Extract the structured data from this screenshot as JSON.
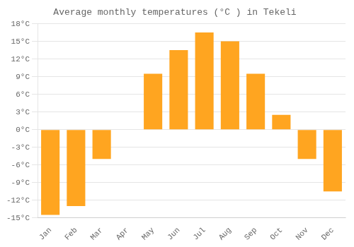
{
  "chart_data": {
    "type": "bar",
    "title": "Average monthly temperatures (°C ) in Tekeli",
    "categories": [
      "Jan",
      "Feb",
      "Mar",
      "Apr",
      "May",
      "Jun",
      "Jul",
      "Aug",
      "Sep",
      "Oct",
      "Nov",
      "Dec"
    ],
    "values": [
      -14.5,
      -13.0,
      -5.0,
      0.0,
      9.5,
      13.5,
      16.5,
      15.0,
      9.5,
      2.5,
      -5.0,
      -10.5
    ],
    "color": "#FFA520",
    "ylim": [
      -15,
      18
    ],
    "yticks": [
      {
        "value": -15,
        "label": "-15°C"
      },
      {
        "value": -12,
        "label": "-12°C"
      },
      {
        "value": -9,
        "label": "-9°C"
      },
      {
        "value": -6,
        "label": "-6°C"
      },
      {
        "value": -3,
        "label": "-3°C"
      },
      {
        "value": 0,
        "label": "0°C"
      },
      {
        "value": 3,
        "label": "3°C"
      },
      {
        "value": 6,
        "label": "6°C"
      },
      {
        "value": 9,
        "label": "9°C"
      },
      {
        "value": 12,
        "label": "12°C"
      },
      {
        "value": 15,
        "label": "15°C"
      },
      {
        "value": 18,
        "label": "18°C"
      }
    ],
    "grid": true
  }
}
